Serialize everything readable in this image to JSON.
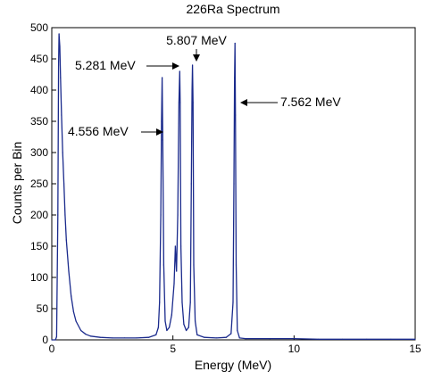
{
  "chart_data": {
    "type": "line",
    "title": "226Ra Spectrum",
    "xlabel": "Energy (MeV)",
    "ylabel": "Counts per Bin",
    "xlim": [
      0,
      15
    ],
    "ylim": [
      0,
      500
    ],
    "xticks": [
      0,
      5,
      10,
      15
    ],
    "yticks": [
      0,
      50,
      100,
      150,
      200,
      250,
      300,
      350,
      400,
      450,
      500
    ],
    "grid": false,
    "series_color": "#1a2a8c",
    "series": [
      {
        "x": [
          0.0,
          0.15,
          0.2,
          0.25,
          0.28,
          0.3,
          0.33,
          0.36,
          0.4,
          0.45,
          0.5,
          0.55,
          0.6,
          0.7,
          0.8,
          0.9,
          1.0,
          1.2,
          1.4,
          1.6,
          2.0,
          2.5,
          3.0,
          3.5,
          4.0,
          4.3,
          4.4,
          4.45,
          4.5,
          4.53,
          4.556,
          4.58,
          4.62,
          4.68,
          4.75,
          4.85,
          4.95,
          5.05,
          5.1,
          5.15,
          5.2,
          5.25,
          5.281,
          5.3,
          5.33,
          5.38,
          5.45,
          5.55,
          5.65,
          5.72,
          5.76,
          5.79,
          5.807,
          5.83,
          5.86,
          5.92,
          6.0,
          6.3,
          6.8,
          7.2,
          7.4,
          7.48,
          7.52,
          7.545,
          7.562,
          7.58,
          7.61,
          7.66,
          7.75,
          8.0,
          9.0,
          10.0,
          11.0,
          12.0,
          13.0,
          14.0,
          15.0
        ],
        "y": [
          0,
          0,
          5,
          200,
          440,
          490,
          470,
          420,
          360,
          300,
          250,
          200,
          160,
          110,
          70,
          45,
          30,
          15,
          9,
          6,
          4,
          3,
          3,
          3,
          4,
          8,
          20,
          60,
          200,
          350,
          420,
          320,
          120,
          30,
          15,
          20,
          40,
          90,
          150,
          110,
          200,
          380,
          430,
          380,
          150,
          60,
          25,
          15,
          20,
          60,
          250,
          400,
          440,
          380,
          120,
          30,
          8,
          4,
          3,
          4,
          10,
          60,
          250,
          420,
          475,
          360,
          120,
          15,
          3,
          2,
          2,
          2,
          1,
          1,
          1,
          1,
          1
        ]
      }
    ],
    "annotations": [
      {
        "text": "4.556 MeV",
        "x": 4.556,
        "y": 400
      },
      {
        "text": "5.281 MeV",
        "x": 5.281,
        "y": 430
      },
      {
        "text": "5.807 MeV",
        "x": 5.807,
        "y": 440
      },
      {
        "text": "7.562 MeV",
        "x": 7.562,
        "y": 475
      }
    ]
  }
}
